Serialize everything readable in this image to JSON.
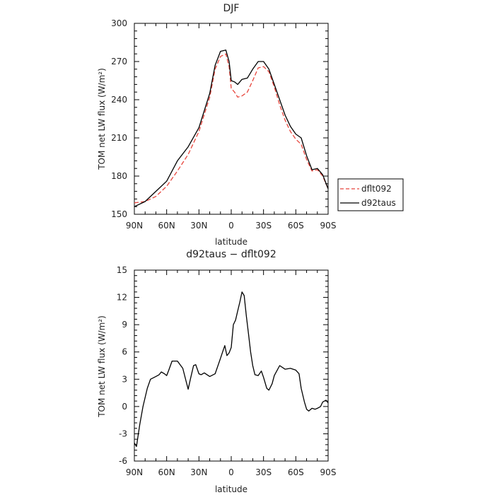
{
  "chart_data": [
    {
      "type": "line",
      "title": "DJF",
      "xlabel": "latitude",
      "ylabel": "TOM net LW flux (W/m²)",
      "ylim": [
        150,
        300
      ],
      "yticks": [
        150,
        180,
        210,
        240,
        270,
        300
      ],
      "xlim": [
        90,
        -90
      ],
      "xticks": [
        90,
        60,
        30,
        0,
        -30,
        -60,
        -90
      ],
      "xtick_labels": [
        "90N",
        "60N",
        "30N",
        "0",
        "30S",
        "60S",
        "90S"
      ],
      "legend_position": "outside-right",
      "series": [
        {
          "name": "dflt092",
          "color": "#e8453c",
          "dash": "dashed",
          "x": [
            90,
            80,
            70,
            60,
            50,
            40,
            30,
            20,
            15,
            10,
            5,
            2,
            0,
            -3,
            -6,
            -10,
            -15,
            -20,
            -25,
            -30,
            -35,
            -40,
            -45,
            -50,
            -55,
            -60,
            -65,
            -70,
            -75,
            -80,
            -85,
            -90
          ],
          "y": [
            159,
            160,
            164,
            172,
            184,
            197,
            215,
            242,
            264,
            274,
            276,
            266,
            249,
            246,
            242,
            243,
            246,
            255,
            265,
            266,
            262,
            250,
            236,
            224,
            215,
            209,
            205,
            193,
            184,
            185,
            180,
            170
          ]
        },
        {
          "name": "d92taus",
          "color": "#000000",
          "dash": "solid",
          "x": [
            90,
            80,
            70,
            60,
            50,
            40,
            30,
            20,
            15,
            10,
            5,
            2,
            0,
            -3,
            -6,
            -10,
            -15,
            -20,
            -25,
            -30,
            -35,
            -40,
            -45,
            -50,
            -55,
            -60,
            -65,
            -70,
            -75,
            -80,
            -85,
            -90
          ],
          "y": [
            156,
            160,
            168,
            176,
            192,
            203,
            218,
            245,
            267,
            278,
            279,
            270,
            255,
            254,
            252,
            256,
            257,
            264,
            270,
            270,
            264,
            252,
            240,
            228,
            219,
            213,
            210,
            196,
            185,
            186,
            181,
            170
          ]
        }
      ]
    },
    {
      "type": "line",
      "title": "d92taus − dflt092",
      "xlabel": "latitude",
      "ylabel": "TOM net LW flux (W/m²)",
      "ylim": [
        -6,
        15
      ],
      "yticks": [
        -6,
        -3,
        0,
        3,
        6,
        9,
        12,
        15
      ],
      "xlim": [
        90,
        -90
      ],
      "xticks": [
        90,
        60,
        30,
        0,
        -30,
        -60,
        -90
      ],
      "xtick_labels": [
        "90N",
        "60N",
        "30N",
        "0",
        "30S",
        "60S",
        "90S"
      ],
      "series": [
        {
          "color": "#000000",
          "dash": "solid",
          "x": [
            90,
            88,
            85,
            82,
            78,
            75,
            70,
            67,
            65,
            62,
            60,
            58,
            55,
            50,
            45,
            42,
            40,
            38,
            35,
            33,
            30,
            28,
            25,
            20,
            15,
            12,
            10,
            8,
            6,
            4,
            2,
            0,
            -2,
            -4,
            -6,
            -8,
            -10,
            -12,
            -14,
            -16,
            -18,
            -20,
            -22,
            -25,
            -28,
            -30,
            -33,
            -35,
            -38,
            -40,
            -45,
            -50,
            -55,
            -60,
            -63,
            -65,
            -68,
            -70,
            -72,
            -75,
            -78,
            -80,
            -83,
            -85,
            -88,
            -90
          ],
          "y": [
            -4,
            -4.4,
            -2,
            0,
            2,
            3,
            3.3,
            3.5,
            3.8,
            3.6,
            3.4,
            4,
            5,
            5,
            4.2,
            2.8,
            1.9,
            3,
            4.5,
            4.6,
            3.6,
            3.5,
            3.7,
            3.3,
            3.6,
            4.6,
            5.3,
            6,
            6.7,
            5.6,
            5.9,
            6.5,
            9,
            9.5,
            10.5,
            11.5,
            12.6,
            12.2,
            10,
            8,
            6,
            4.5,
            3.5,
            3.4,
            3.9,
            3.2,
            2,
            1.8,
            2.5,
            3.4,
            4.5,
            4.1,
            4.2,
            4,
            3.6,
            2,
            0.5,
            -0.3,
            -0.5,
            -0.2,
            -0.3,
            -0.2,
            0,
            0.5,
            0.7,
            0.4
          ]
        }
      ]
    }
  ]
}
